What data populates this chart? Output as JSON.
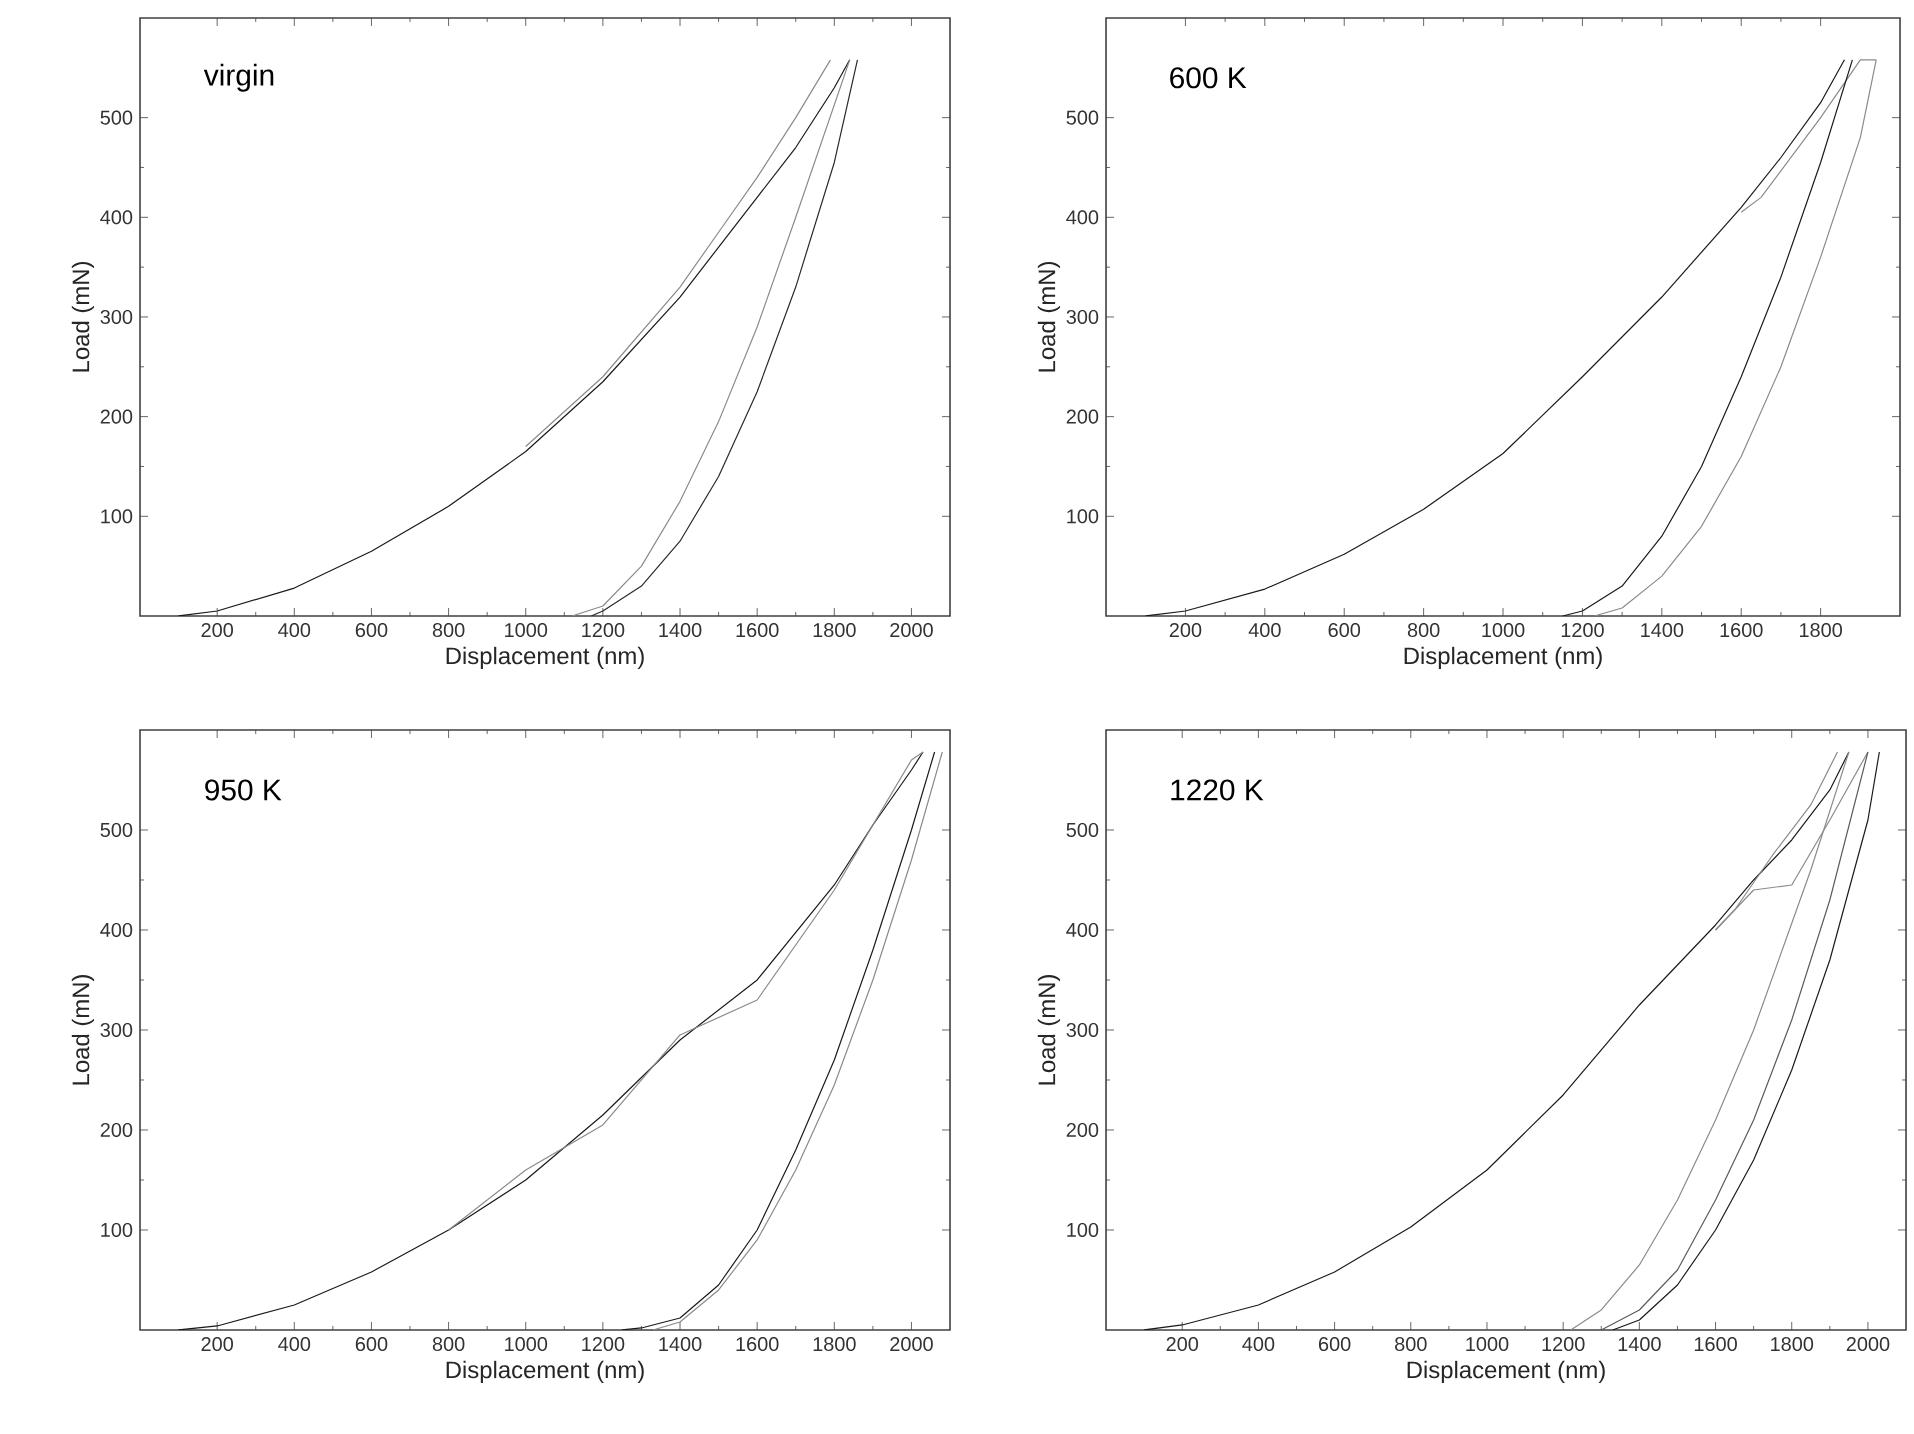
{
  "chart_data": [
    {
      "type": "line",
      "xlabel": "Displacement (nm)",
      "ylabel": "Load (mN)",
      "annotations": [
        "virgin"
      ],
      "xlim": [
        0,
        2100
      ],
      "ylim": [
        0,
        600
      ],
      "xticks": [
        200,
        400,
        600,
        800,
        1000,
        1200,
        1400,
        1600,
        1800,
        2000
      ],
      "yticks": [
        100,
        200,
        300,
        400,
        500
      ],
      "series": [
        {
          "color": "#1a1a1a",
          "x": [
            100,
            200,
            400,
            600,
            800,
            1000,
            1200,
            1400,
            1600,
            1700,
            1800,
            1840
          ],
          "values": [
            0,
            5,
            28,
            65,
            110,
            165,
            235,
            320,
            420,
            470,
            530,
            558
          ]
        },
        {
          "color": "#8a8a8a",
          "x": [
            1000,
            1200,
            1400,
            1500,
            1600,
            1700,
            1790
          ],
          "values": [
            170,
            240,
            330,
            385,
            440,
            500,
            558
          ]
        },
        {
          "color": "#2a2a2a",
          "x": [
            1860,
            1800,
            1700,
            1600,
            1500,
            1400,
            1300,
            1200,
            1170
          ],
          "values": [
            558,
            455,
            330,
            225,
            140,
            75,
            30,
            5,
            0
          ]
        },
        {
          "color": "#8a8a8a",
          "x": [
            1840,
            1700,
            1600,
            1500,
            1400,
            1300,
            1200,
            1120
          ],
          "values": [
            558,
            400,
            290,
            195,
            115,
            50,
            10,
            0
          ]
        }
      ]
    },
    {
      "type": "line",
      "xlabel": "Displacement (nm)",
      "ylabel": "Load (mN)",
      "annotations": [
        "600 K"
      ],
      "xlim": [
        0,
        2000
      ],
      "ylim": [
        0,
        600
      ],
      "xticks": [
        200,
        400,
        600,
        800,
        1000,
        1200,
        1400,
        1600,
        1800
      ],
      "yticks": [
        100,
        200,
        300,
        400,
        500
      ],
      "series": [
        {
          "color": "#1a1a1a",
          "x": [
            100,
            200,
            400,
            600,
            800,
            1000,
            1200,
            1400,
            1600,
            1700,
            1800,
            1860
          ],
          "values": [
            0,
            5,
            27,
            62,
            107,
            163,
            240,
            320,
            410,
            460,
            515,
            558
          ]
        },
        {
          "color": "#8a8a8a",
          "x": [
            1600,
            1650,
            1800,
            1900,
            1940
          ],
          "values": [
            405,
            420,
            500,
            558,
            558
          ]
        },
        {
          "color": "#1a1a1a",
          "x": [
            1880,
            1800,
            1700,
            1600,
            1500,
            1400,
            1300,
            1200,
            1150
          ],
          "values": [
            558,
            455,
            340,
            240,
            150,
            80,
            30,
            5,
            0
          ]
        },
        {
          "color": "#8a8a8a",
          "x": [
            1940,
            1900,
            1800,
            1700,
            1600,
            1500,
            1400,
            1300,
            1230
          ],
          "values": [
            558,
            480,
            360,
            250,
            160,
            90,
            40,
            8,
            0
          ]
        }
      ]
    },
    {
      "type": "line",
      "xlabel": "Displacement (nm)",
      "ylabel": "Load (mN)",
      "annotations": [
        "950 K"
      ],
      "xlim": [
        0,
        2100
      ],
      "ylim": [
        0,
        600
      ],
      "xticks": [
        200,
        400,
        600,
        800,
        1000,
        1200,
        1400,
        1600,
        1800,
        2000
      ],
      "yticks": [
        100,
        200,
        300,
        400,
        500
      ],
      "series": [
        {
          "color": "#1a1a1a",
          "x": [
            100,
            200,
            400,
            600,
            800,
            1000,
            1200,
            1400,
            1600,
            1800,
            1900,
            2000,
            2030
          ],
          "values": [
            0,
            4,
            25,
            58,
            100,
            150,
            215,
            290,
            350,
            445,
            505,
            560,
            578
          ]
        },
        {
          "color": "#8a8a8a",
          "x": [
            800,
            1000,
            1200,
            1400,
            1600,
            1800,
            2000,
            2030
          ],
          "values": [
            100,
            160,
            205,
            295,
            330,
            440,
            570,
            578
          ]
        },
        {
          "color": "#1a1a1a",
          "x": [
            2060,
            2000,
            1900,
            1800,
            1700,
            1600,
            1500,
            1400,
            1300,
            1250
          ],
          "values": [
            578,
            500,
            380,
            270,
            180,
            100,
            45,
            12,
            2,
            0
          ]
        },
        {
          "color": "#8a8a8a",
          "x": [
            2080,
            2000,
            1900,
            1800,
            1700,
            1600,
            1500,
            1400,
            1330
          ],
          "values": [
            578,
            470,
            350,
            245,
            160,
            90,
            40,
            8,
            0
          ]
        }
      ]
    },
    {
      "type": "line",
      "xlabel": "Displacement (nm)",
      "ylabel": "Load (mN)",
      "annotations": [
        "1220 K"
      ],
      "xlim": [
        0,
        2100
      ],
      "ylim": [
        0,
        600
      ],
      "xticks": [
        200,
        400,
        600,
        800,
        1000,
        1200,
        1400,
        1600,
        1800,
        2000
      ],
      "yticks": [
        100,
        200,
        300,
        400,
        500
      ],
      "series": [
        {
          "color": "#1a1a1a",
          "x": [
            100,
            200,
            400,
            600,
            800,
            1000,
            1200,
            1400,
            1600,
            1700,
            1800,
            1900,
            1950
          ],
          "values": [
            0,
            5,
            25,
            58,
            103,
            160,
            235,
            325,
            405,
            450,
            490,
            540,
            578
          ]
        },
        {
          "color": "#8a8a8a",
          "x": [
            1600,
            1700,
            1800,
            1900,
            2000
          ],
          "values": [
            400,
            440,
            445,
            510,
            578
          ]
        },
        {
          "color": "#8a8a8a",
          "x": [
            1600,
            1650,
            1750,
            1850,
            1920
          ],
          "values": [
            400,
            420,
            475,
            525,
            578
          ]
        },
        {
          "color": "#8a8a8a",
          "x": [
            1950,
            1850,
            1700,
            1600,
            1500,
            1400,
            1300,
            1220
          ],
          "values": [
            578,
            460,
            300,
            210,
            130,
            65,
            20,
            0
          ]
        },
        {
          "color": "#5a5a5a",
          "x": [
            2000,
            1900,
            1800,
            1700,
            1600,
            1500,
            1400,
            1300
          ],
          "values": [
            578,
            430,
            310,
            210,
            130,
            60,
            20,
            0
          ]
        },
        {
          "color": "#1a1a1a",
          "x": [
            2030,
            2000,
            1900,
            1800,
            1700,
            1600,
            1500,
            1400,
            1330
          ],
          "values": [
            578,
            510,
            370,
            260,
            170,
            100,
            45,
            10,
            0
          ]
        }
      ]
    }
  ]
}
